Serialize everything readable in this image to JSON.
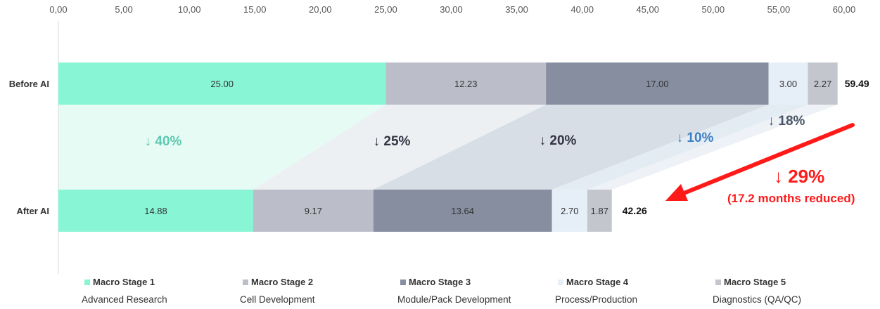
{
  "chart_data": {
    "type": "bar",
    "orientation": "horizontal-stacked",
    "title": "",
    "xlim": [
      0,
      60
    ],
    "x_ticks": [
      "0,00",
      "5,00",
      "10,00",
      "15,00",
      "20,00",
      "25,00",
      "30,00",
      "35,00",
      "40,00",
      "45,00",
      "50,00",
      "55,00",
      "60,00"
    ],
    "categories": [
      "Before AI",
      "After AI"
    ],
    "series": [
      {
        "name": "Macro Stage 1",
        "stage": "Advanced Research",
        "color": "#88f5d5",
        "values": [
          25.0,
          14.88
        ],
        "labels": [
          "25.00",
          "14.88"
        ]
      },
      {
        "name": "Macro Stage 2",
        "stage": "Cell Development",
        "color": "#bbbec9",
        "values": [
          12.23,
          9.17
        ],
        "labels": [
          "12.23",
          "9.17"
        ]
      },
      {
        "name": "Macro Stage 3",
        "stage": "Module/Pack Development",
        "color": "#868ea0",
        "values": [
          17.0,
          13.64
        ],
        "labels": [
          "17.00",
          "13.64"
        ]
      },
      {
        "name": "Macro Stage 4",
        "stage": "Process/Production",
        "color": "#e6eef8",
        "values": [
          3.0,
          2.7
        ],
        "labels": [
          "3.00",
          "2.70"
        ]
      },
      {
        "name": "Macro Stage 5",
        "stage": "Diagnostics (QA/QC)",
        "color": "#c4c6cd",
        "values": [
          2.27,
          1.87
        ],
        "labels": [
          "2.27",
          "1.87"
        ]
      }
    ],
    "totals": [
      "59.49",
      "42.26"
    ],
    "reductions": [
      {
        "label": "↓ 40%",
        "color": "#5cc9b2"
      },
      {
        "label": "↓ 25%",
        "color": "#333344"
      },
      {
        "label": "↓ 20%",
        "color": "#333344"
      },
      {
        "label": "↓ 10%",
        "color": "#3e7ec2"
      },
      {
        "label": "↓ 18%",
        "color": "#4a5566"
      }
    ],
    "band_colors": [
      "#e6fbf3",
      "#edf0f3",
      "#d8dee5",
      "#e4ecf3",
      "#eef2f6"
    ],
    "legend_position": "bottom",
    "grid": false
  },
  "callout": {
    "headline": "↓ 29%",
    "detail": "(17.2 months reduced)",
    "color": "#ff1a1a"
  }
}
